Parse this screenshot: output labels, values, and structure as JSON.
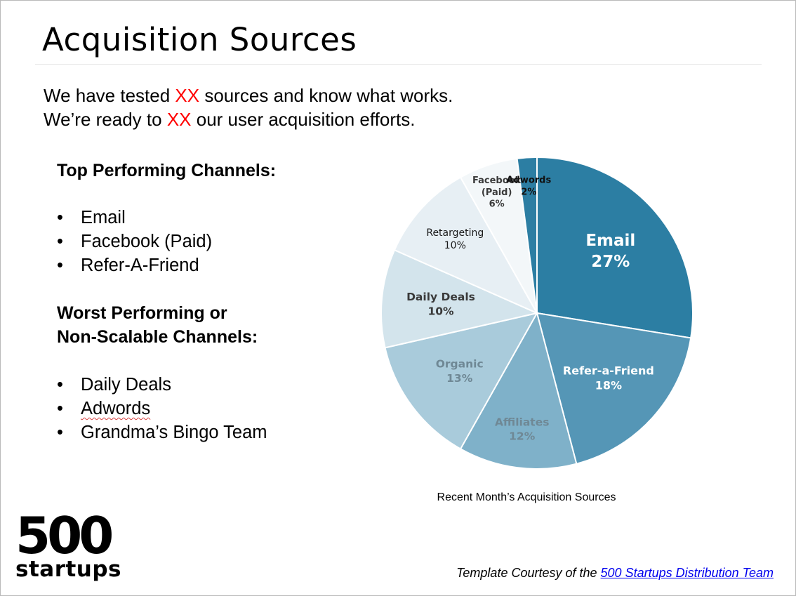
{
  "title": "Acquisition Sources",
  "intro": {
    "line1": {
      "before": "We have tested ",
      "highlight": "XX",
      "after": " sources and know what works."
    },
    "line2": {
      "before": "We’re ready to ",
      "highlight": "XX",
      "after": " our user acquisition efforts."
    }
  },
  "top_section": {
    "heading": "Top Performing Channels:",
    "items": [
      "Email",
      "Facebook (Paid)",
      "Refer-A-Friend"
    ]
  },
  "worst_section": {
    "heading_line1": "Worst Performing or",
    "heading_line2": "Non-Scalable Channels:",
    "items": [
      "Daily Deals",
      "Adwords",
      "Grandma’s Bingo Team"
    ]
  },
  "bullet_char": "•",
  "chart_data": {
    "type": "pie",
    "caption": "Recent Month’s Acquisition Sources",
    "slices": [
      {
        "label": "Email",
        "value": 27,
        "display": "27%",
        "color": "#2c7ea3",
        "text_color": "#ffffff"
      },
      {
        "label": "Refer-a-Friend",
        "value": 18,
        "display": "18%",
        "color": "#5596b6",
        "text_color": "#ffffff"
      },
      {
        "label": "Affiliates",
        "value": 12,
        "display": "12%",
        "color": "#7fb1c9",
        "text_color": "#6f8895"
      },
      {
        "label": "Organic",
        "value": 13,
        "display": "13%",
        "color": "#a9cbdb",
        "text_color": "#6f8895"
      },
      {
        "label": "Daily Deals",
        "value": 10,
        "display": "10%",
        "color": "#d3e4ec",
        "text_color": "#3a3a3a"
      },
      {
        "label": "Retargeting",
        "value": 10,
        "display": "10%",
        "color": "#e7eff4",
        "text_color": "#1a1a1a"
      },
      {
        "label": "Facebook\n(Paid)",
        "value": 6,
        "display": "6%",
        "color": "#f3f7f9",
        "text_color": "#3a3a3a"
      },
      {
        "label": "Adwords",
        "value": 2,
        "display": "2%",
        "color": "#2c7ea3",
        "text_color": "#111111"
      }
    ]
  },
  "logo": {
    "number": "500",
    "word": "startups"
  },
  "credit": {
    "text": "Template Courtesy of the ",
    "link_text": "500 Startups Distribution Team"
  }
}
